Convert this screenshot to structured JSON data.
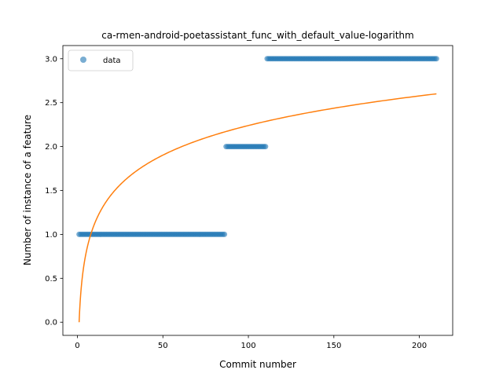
{
  "chart_data": {
    "type": "scatter",
    "title": "ca-rmen-android-poetassistant_func_with_default_value-logarithm",
    "xlabel": "Commit number",
    "ylabel": "Number of instance of a feature",
    "xlim": [
      -8.5,
      219.5
    ],
    "ylim": [
      -0.15,
      3.15
    ],
    "xticks": [
      0,
      50,
      100,
      150,
      200
    ],
    "yticks": [
      0.0,
      0.5,
      1.0,
      1.5,
      2.0,
      2.5,
      3.0
    ],
    "xtick_labels": [
      "0",
      "50",
      "100",
      "150",
      "200"
    ],
    "ytick_labels": [
      "0.0",
      "0.5",
      "1.0",
      "1.5",
      "2.0",
      "2.5",
      "3.0"
    ],
    "legend": {
      "position": "top-left",
      "entries": [
        {
          "label": "data"
        }
      ]
    },
    "grid": false,
    "series": [
      {
        "name": "data",
        "kind": "scatter",
        "color": "#1f77b4",
        "segments": [
          {
            "x_start": 1,
            "x_end": 86,
            "y": 1.0
          },
          {
            "x_start": 87,
            "x_end": 110,
            "y": 2.0
          },
          {
            "x_start": 111,
            "x_end": 210,
            "y": 3.0
          }
        ]
      },
      {
        "kind": "line",
        "color": "#ff7f0e",
        "function": "a + b*ln(x)",
        "a": 0.0,
        "b": 0.4863,
        "x_range": [
          1,
          210
        ]
      }
    ]
  }
}
